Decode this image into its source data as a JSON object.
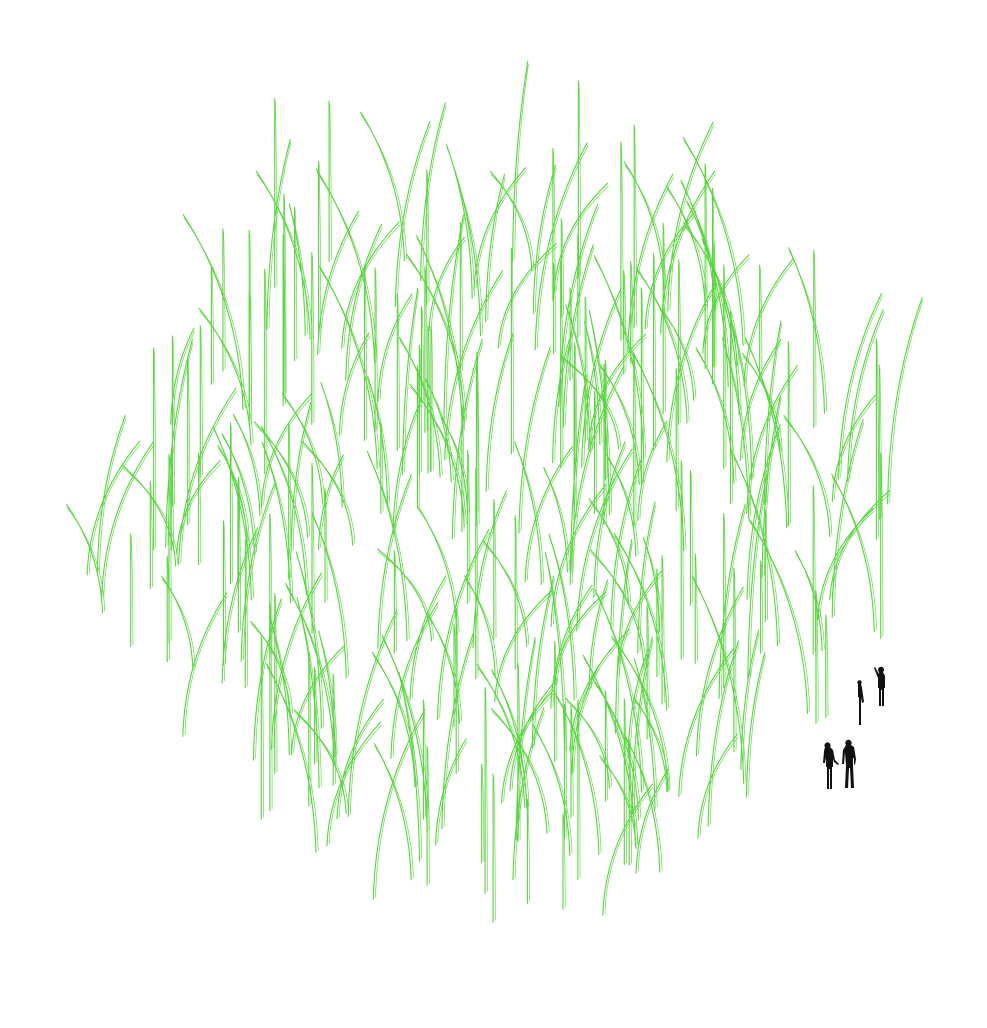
{
  "drawing": {
    "subject": "",
    "colors": {
      "background": "#ffffff",
      "blade_stroke": "#59d43f",
      "figure_fill": "#111111"
    }
  },
  "icons": {
    "blade": "grass-blade-icon",
    "figure": "person-silhouette-icon"
  }
}
